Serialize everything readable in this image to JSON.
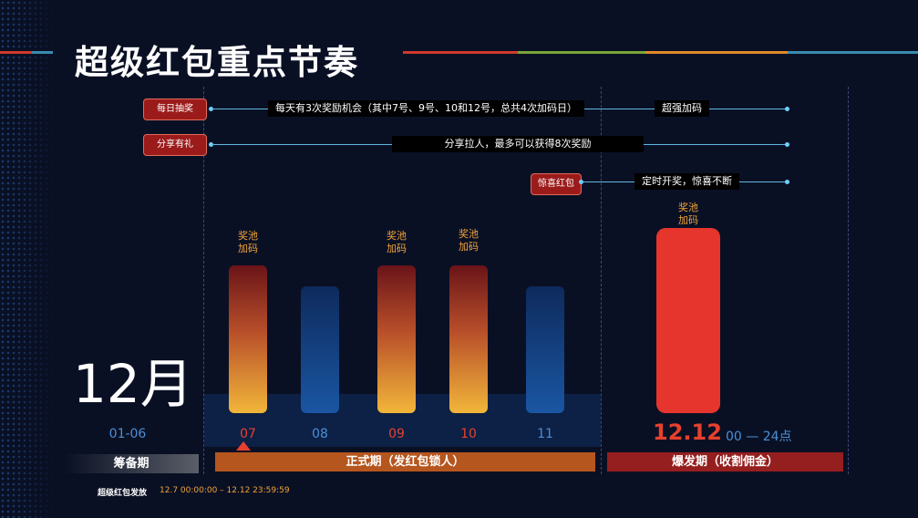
{
  "title": "超级红包重点节奏",
  "header_lines": [
    "#d03a2a",
    "#7aa53a",
    "#e08a2a",
    "#3a8bb0"
  ],
  "tags": {
    "daily": "每日抽奖",
    "share": "分享有礼",
    "surprise": "惊喜红包"
  },
  "labels": {
    "daily": "每天有3次奖励机会（其中7号、9号、10和12号，总共4次加码日）",
    "daily_end": "超强加码",
    "share": "分享拉人，最多可以获得8次奖励",
    "surprise": "定时开奖，惊喜不断"
  },
  "month": "12月",
  "bonus_note_line1": "奖池",
  "bonus_note_line2": "加码",
  "dates": {
    "prep": "01-06",
    "d07": "07",
    "d08": "08",
    "d09": "09",
    "d10": "10",
    "d11": "11",
    "d12": "12.12",
    "d12_hours": "00 — 24点"
  },
  "phases": {
    "prep": "筹备期",
    "formal": "正式期（发红包锁人）",
    "burst": "爆发期（收割佣金）"
  },
  "footer": {
    "label": "超级红包发放",
    "time": "12.7 00:00:00 – 12.12 23:59:59"
  }
}
